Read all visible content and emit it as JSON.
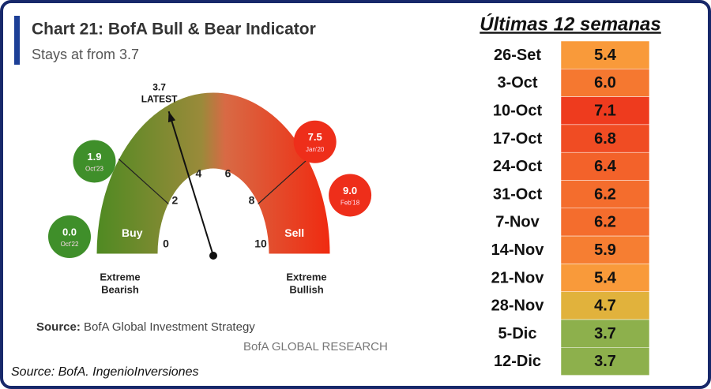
{
  "chart_data": {
    "type": "gauge",
    "title": "Chart 21: BofA Bull & Bear Indicator",
    "subtitle": "Stays at from 3.7",
    "value": 3.7,
    "value_caption": "LATEST",
    "lim": [
      0,
      10
    ],
    "ticks": [
      0,
      2,
      4,
      6,
      8,
      10
    ],
    "zones": [
      {
        "name": "Buy",
        "from": 0,
        "to": 2
      },
      {
        "name": "Sell",
        "from": 8,
        "to": 10
      }
    ],
    "markers": [
      {
        "value": 1.9,
        "value_label": "1.9",
        "date": "Oct'23"
      },
      {
        "value": 0,
        "value_label": "0.0",
        "date": "Oct'22"
      },
      {
        "value": 7.5,
        "value_label": "7.5",
        "date": "Jan'20"
      },
      {
        "value": 9,
        "value_label": "9.0",
        "date": "Feb'18"
      }
    ],
    "left_label": [
      "Extreme",
      "Bearish"
    ],
    "right_label": [
      "Extreme",
      "Bullish"
    ],
    "source_label": "Source:",
    "source": "BofA Global Investment Strategy",
    "brand": "BofA GLOBAL RESEARCH"
  },
  "table": {
    "title": "Últimas 12 semanas",
    "rows": [
      {
        "week": "26-Set",
        "value": 5.4,
        "value_label": "5.4"
      },
      {
        "week": "3-Oct",
        "value": 6,
        "value_label": "6.0"
      },
      {
        "week": "10-Oct",
        "value": 7.1,
        "value_label": "7.1"
      },
      {
        "week": "17-Oct",
        "value": 6.8,
        "value_label": "6.8"
      },
      {
        "week": "24-Oct",
        "value": 6.4,
        "value_label": "6.4"
      },
      {
        "week": "31-Oct",
        "value": 6.2,
        "value_label": "6.2"
      },
      {
        "week": "7-Nov",
        "value": 6.2,
        "value_label": "6.2"
      },
      {
        "week": "14-Nov",
        "value": 5.9,
        "value_label": "5.9"
      },
      {
        "week": "21-Nov",
        "value": 5.4,
        "value_label": "5.4"
      },
      {
        "week": "28-Nov",
        "value": 4.7,
        "value_label": "4.7"
      },
      {
        "week": "5-Dic",
        "value": 3.7,
        "value_label": "3.7"
      },
      {
        "week": "12-Dic",
        "value": 3.7,
        "value_label": "3.7"
      }
    ]
  },
  "footer": "Source: BofA. IngenioInversiones"
}
